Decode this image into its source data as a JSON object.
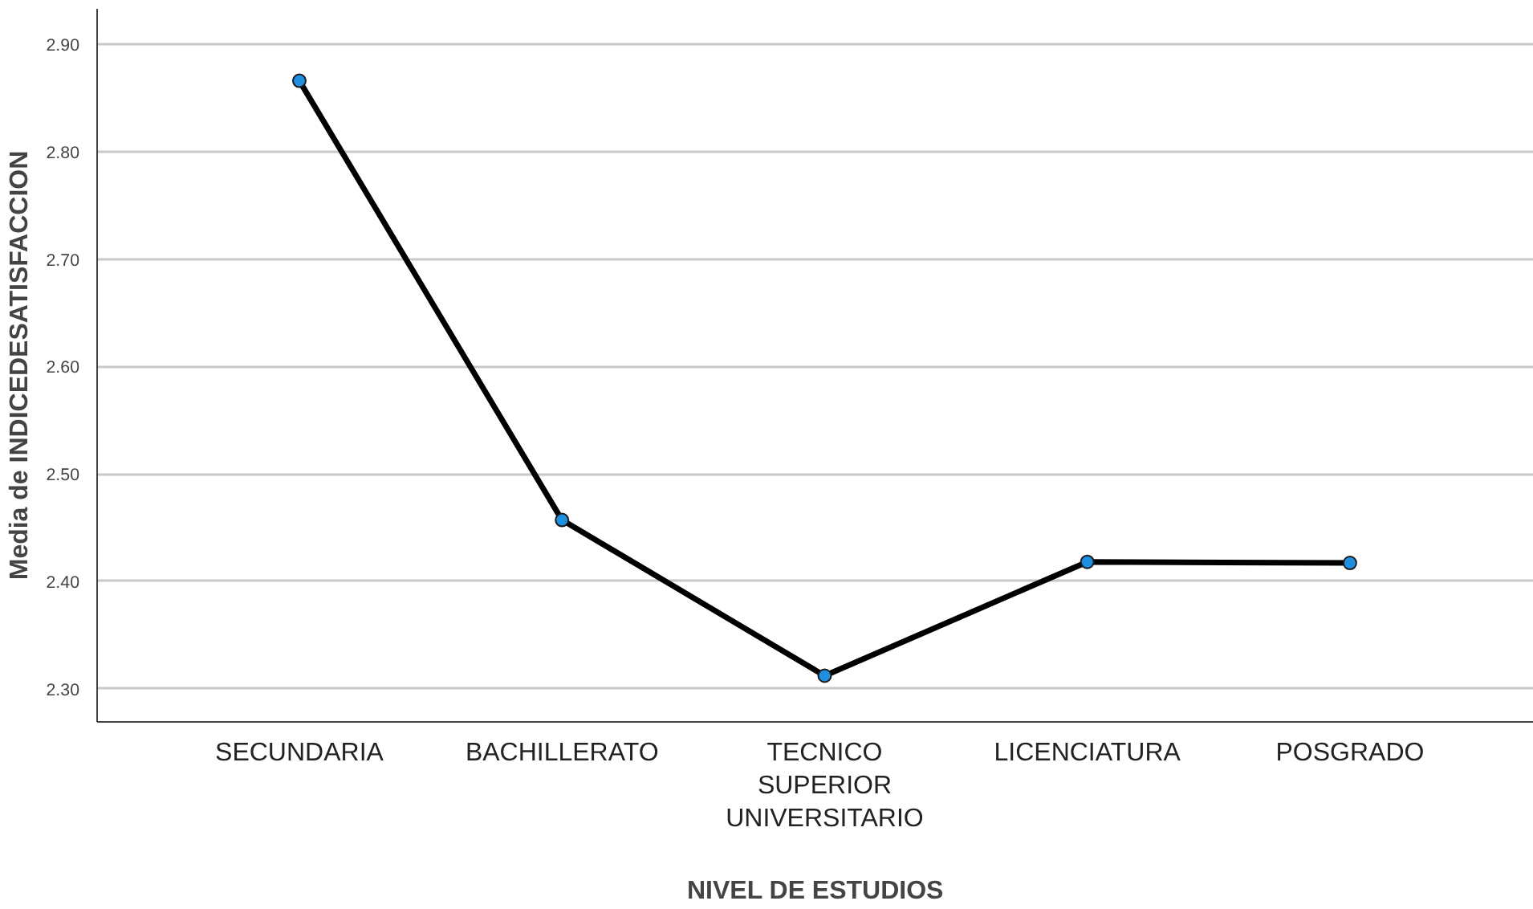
{
  "chart_data": {
    "type": "line",
    "xlabel": "NIVEL DE ESTUDIOS",
    "ylabel": "Media de INDICEDESATISFACCION",
    "categories": [
      "SECUNDARIA",
      "BACHILLERATO",
      "TECNICO SUPERIOR UNIVERSITARIO",
      "LICENCIATURA",
      "POSGRADO"
    ],
    "series": [
      {
        "color": "#000000",
        "colors": [
          "#1f8fe0",
          "#1f8fe0",
          "#1f8fe0",
          "#1f8fe0",
          "#1f8fe0"
        ],
        "values": [
          2.866,
          2.457,
          2.312,
          2.418,
          2.417
        ]
      }
    ],
    "ylim": [
      2.269,
      2.933
    ],
    "yticks": [
      {
        "value": 2.3,
        "label": "2.30"
      },
      {
        "value": 2.4,
        "label": "2.40"
      },
      {
        "value": 2.5,
        "label": "2.50"
      },
      {
        "value": 2.6,
        "label": "2.60"
      },
      {
        "value": 2.7,
        "label": "2.70"
      },
      {
        "value": 2.8,
        "label": "2.80"
      },
      {
        "value": 2.9,
        "label": "2.90"
      }
    ],
    "grid": "y",
    "marker": "circle",
    "line_style": "solid"
  }
}
